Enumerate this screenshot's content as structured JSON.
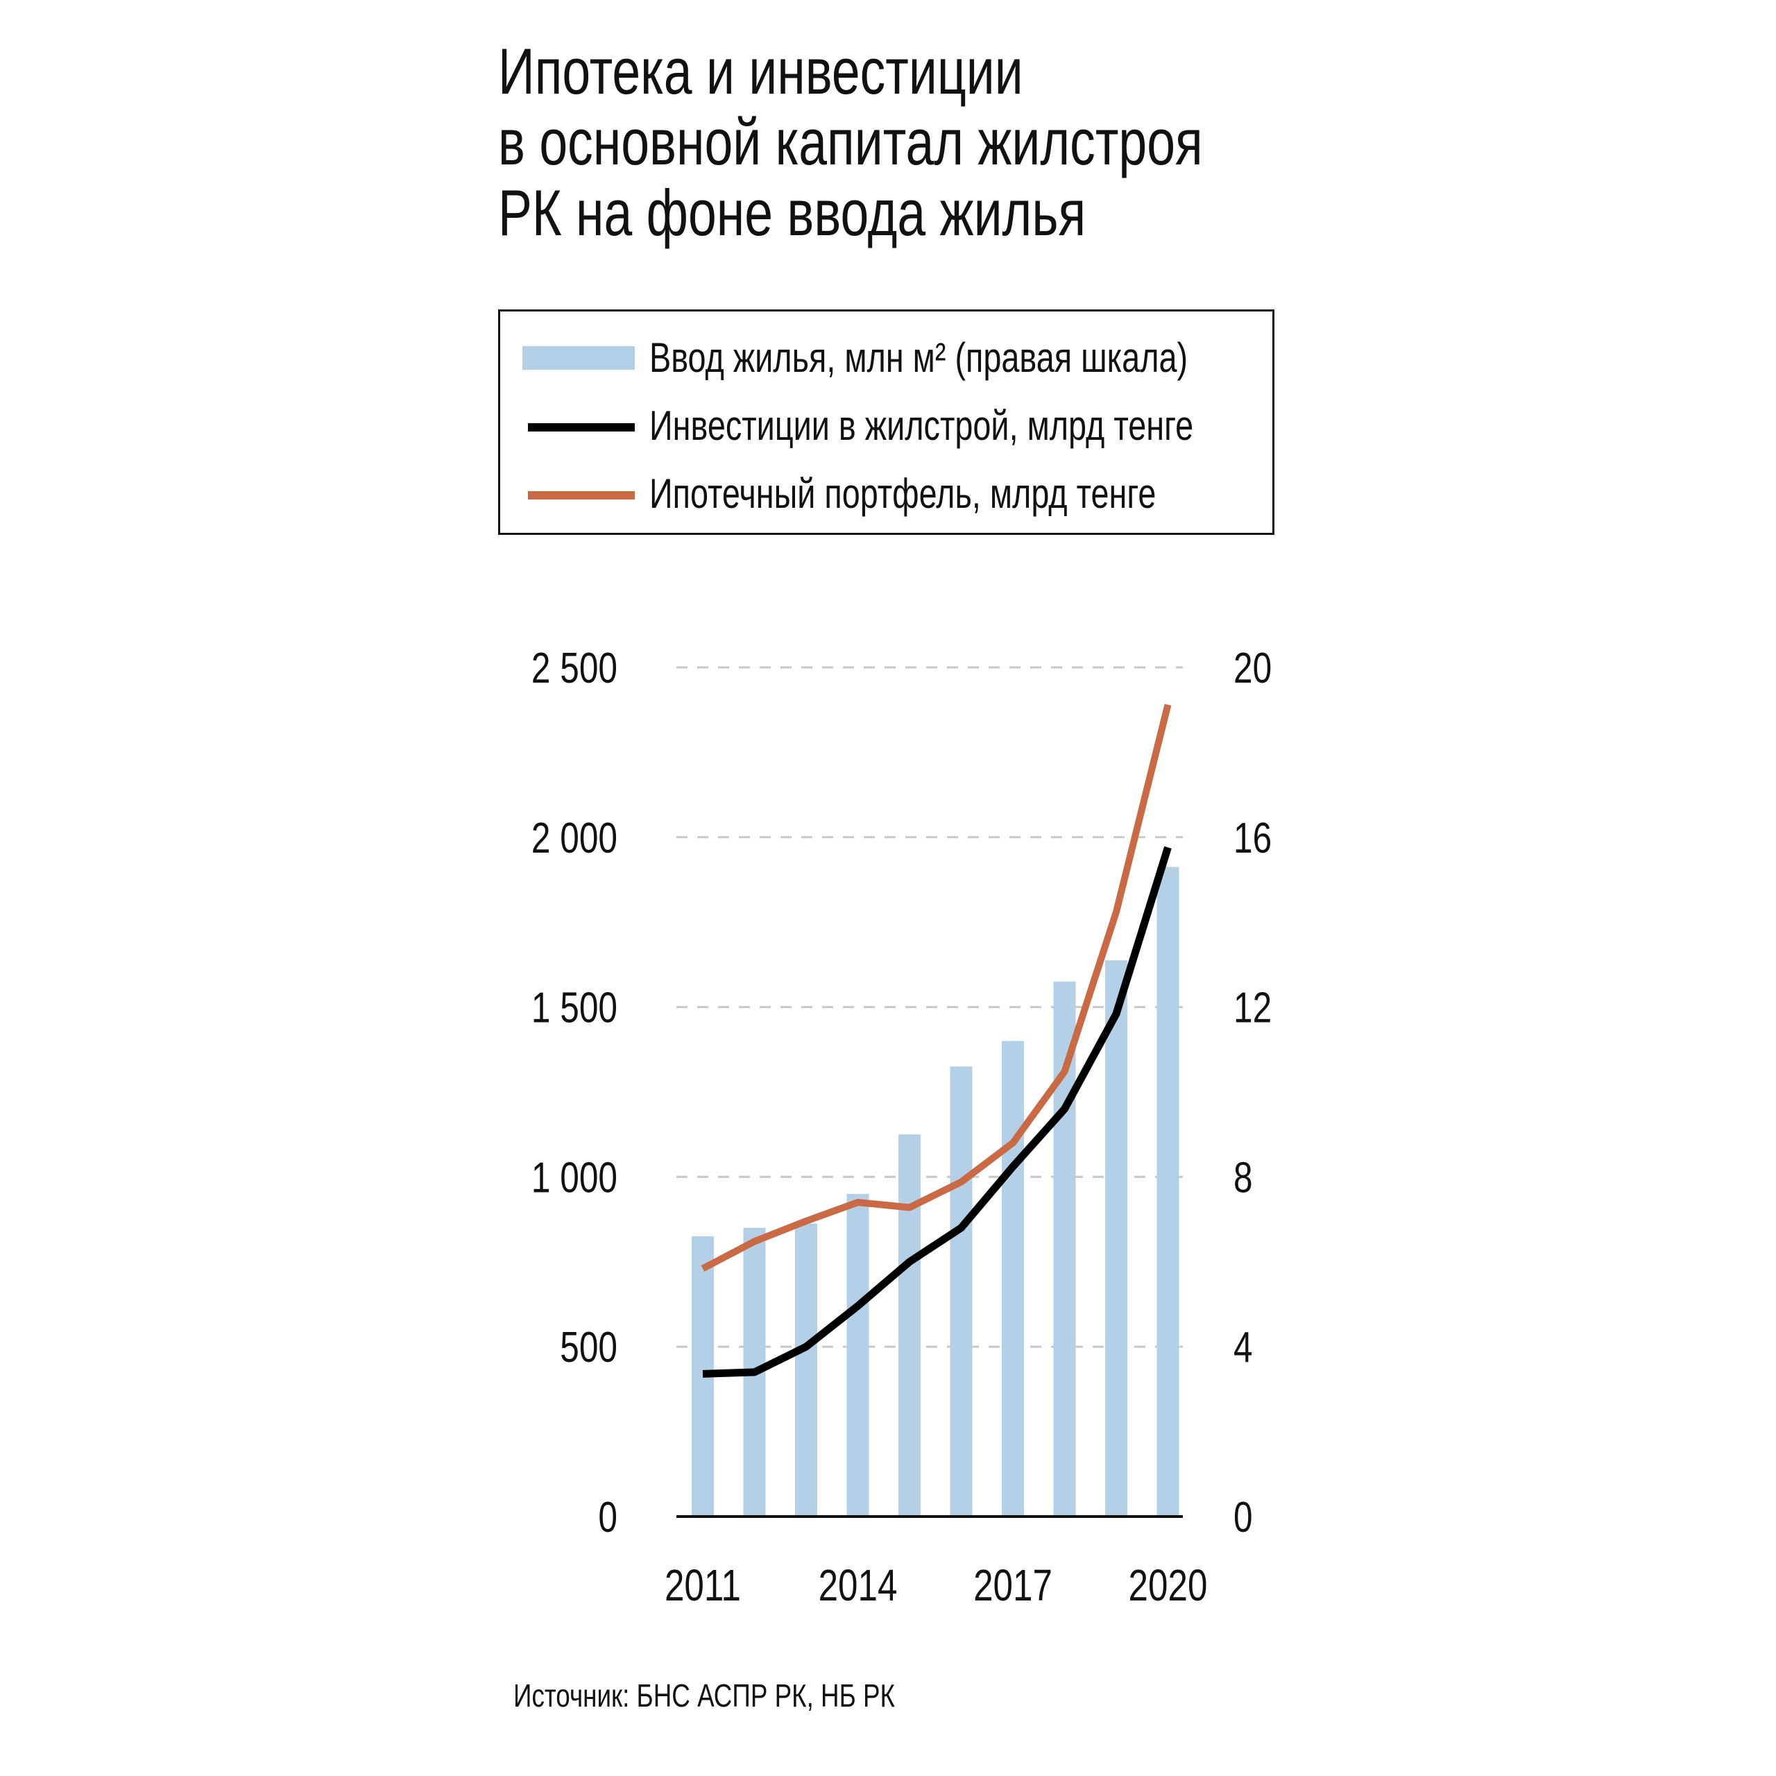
{
  "title_lines": [
    "Ипотека и инвестиции",
    "в основной капитал жилстроя",
    "РК на фоне ввода жилья"
  ],
  "legend": [
    {
      "label": "Ввод жилья, млн м² (правая шкала)",
      "kind": "bar",
      "color": "#b3d0e7"
    },
    {
      "label": "Инвестиции в жилстрой, млрд тенге",
      "kind": "line",
      "color": "#000000"
    },
    {
      "label": "Ипотечный портфель, млрд тенге",
      "kind": "line",
      "color": "#c96a44"
    }
  ],
  "source": "Источник: БНС АСПР РК, НБ РК",
  "chart_data": {
    "type": "bar+line",
    "x": [
      2011,
      2012,
      2013,
      2014,
      2015,
      2016,
      2017,
      2018,
      2019,
      2020
    ],
    "x_tick_labels": [
      "2011",
      "2014",
      "2017",
      "2020"
    ],
    "x_tick_values": [
      2011,
      2014,
      2017,
      2020
    ],
    "y_left": {
      "ylim": [
        0,
        2500
      ],
      "ticks": [
        0,
        500,
        1000,
        1500,
        2000,
        2500
      ],
      "tick_labels": [
        "0",
        "500",
        "1 000",
        "1 500",
        "2 000",
        "2 500"
      ]
    },
    "y_right": {
      "ylim": [
        0,
        20
      ],
      "ticks": [
        0,
        4,
        8,
        12,
        16,
        20
      ],
      "tick_labels": [
        "0",
        "4",
        "8",
        "12",
        "16",
        "20"
      ]
    },
    "grid": "horizontal dashed",
    "series": [
      {
        "name": "Ввод жилья, млн м² (правая шкала)",
        "kind": "bar",
        "axis": "right",
        "color": "#b3d0e7",
        "values": [
          6.6,
          6.8,
          6.9,
          7.6,
          9.0,
          10.6,
          11.2,
          12.6,
          13.1,
          15.3
        ]
      },
      {
        "name": "Инвестиции в жилстрой, млрд тенге",
        "kind": "line",
        "axis": "left",
        "color": "#000000",
        "values": [
          420,
          425,
          500,
          620,
          750,
          850,
          1030,
          1200,
          1480,
          1970
        ]
      },
      {
        "name": "Ипотечный портфель, млрд тенге",
        "kind": "line",
        "axis": "left",
        "color": "#c96a44",
        "values": [
          730,
          810,
          870,
          925,
          910,
          985,
          1100,
          1310,
          1780,
          2390
        ]
      }
    ]
  }
}
